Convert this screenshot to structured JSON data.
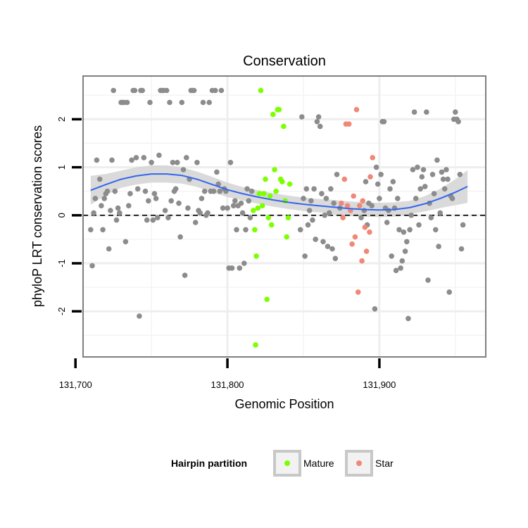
{
  "chart_data": {
    "type": "scatter",
    "title": "Conservation",
    "xlabel": "Genomic Position",
    "ylabel": "phyloP LRT conservation scores",
    "xlim": [
      131705,
      131970
    ],
    "ylim": [
      -2.95,
      2.9
    ],
    "x_ticks": [
      131700,
      131800,
      131900
    ],
    "x_tick_labels": [
      "131,700",
      "131,800",
      "131,900"
    ],
    "y_ticks": [
      -2,
      -1,
      0,
      1,
      2
    ],
    "y_tick_labels": [
      "-2",
      "-1",
      "0",
      "1",
      "2"
    ],
    "grid": true,
    "reference_line": {
      "y": 0,
      "style": "dashed"
    },
    "legend": {
      "title": "Hairpin partition",
      "placement": "bottom",
      "entries": [
        {
          "label": "Mature",
          "color": "#7cff00"
        },
        {
          "label": "Star",
          "color": "#f08878"
        }
      ]
    },
    "colors": {
      "other": "#8c8c8c",
      "Mature": "#7cff00",
      "Star": "#f08878",
      "smooth_line": "#3366ee",
      "ribbon": "#d3d3d3"
    },
    "smooth": {
      "x": [
        131710,
        131720,
        131730,
        131740,
        131750,
        131760,
        131770,
        131780,
        131790,
        131800,
        131810,
        131820,
        131830,
        131840,
        131850,
        131860,
        131870,
        131880,
        131890,
        131900,
        131910,
        131920,
        131930,
        131940,
        131950,
        131958
      ],
      "y": [
        0.52,
        0.64,
        0.75,
        0.82,
        0.86,
        0.86,
        0.83,
        0.75,
        0.64,
        0.53,
        0.45,
        0.38,
        0.32,
        0.27,
        0.23,
        0.2,
        0.17,
        0.14,
        0.12,
        0.11,
        0.12,
        0.16,
        0.24,
        0.35,
        0.48,
        0.6
      ],
      "upper": [
        0.82,
        0.86,
        0.93,
        1.0,
        1.04,
        1.04,
        1.0,
        0.91,
        0.8,
        0.68,
        0.59,
        0.52,
        0.46,
        0.41,
        0.37,
        0.34,
        0.32,
        0.29,
        0.27,
        0.26,
        0.27,
        0.3,
        0.4,
        0.55,
        0.75,
        0.94
      ],
      "lower": [
        0.22,
        0.42,
        0.57,
        0.64,
        0.68,
        0.68,
        0.66,
        0.59,
        0.48,
        0.38,
        0.31,
        0.24,
        0.18,
        0.13,
        0.09,
        0.06,
        0.02,
        -0.01,
        -0.03,
        -0.04,
        -0.03,
        0.02,
        0.08,
        0.15,
        0.21,
        0.26
      ]
    },
    "series": [
      {
        "group": "other",
        "points": [
          [
            131710,
            -0.3
          ],
          [
            131711,
            -1.05
          ],
          [
            131712,
            0.05
          ],
          [
            131713,
            0.35
          ],
          [
            131714,
            1.15
          ],
          [
            131716,
            0.75
          ],
          [
            131717,
            0.2
          ],
          [
            131718,
            -0.3
          ],
          [
            131719,
            0.35
          ],
          [
            131720,
            0.45
          ],
          [
            131721,
            0.5
          ],
          [
            131722,
            -0.7
          ],
          [
            131723,
            0.1
          ],
          [
            131724,
            1.15
          ],
          [
            131725,
            2.6
          ],
          [
            131726,
            0.5
          ],
          [
            131727,
            -0.1
          ],
          [
            131728,
            0.15
          ],
          [
            131729,
            0.05
          ],
          [
            131730,
            2.35
          ],
          [
            131731,
            2.35
          ],
          [
            131732,
            2.35
          ],
          [
            131733,
            -0.55
          ],
          [
            131734,
            2.35
          ],
          [
            131735,
            0.2
          ],
          [
            131736,
            0.45
          ],
          [
            131737,
            1.15
          ],
          [
            131738,
            2.6
          ],
          [
            131739,
            2.6
          ],
          [
            131740,
            1.2
          ],
          [
            131741,
            0.55
          ],
          [
            131742,
            -2.1
          ],
          [
            131743,
            2.6
          ],
          [
            131744,
            2.6
          ],
          [
            131745,
            1.2
          ],
          [
            131746,
            0.5
          ],
          [
            131747,
            -0.1
          ],
          [
            131748,
            0.3
          ],
          [
            131749,
            2.35
          ],
          [
            131750,
            1.1
          ],
          [
            131751,
            -0.1
          ],
          [
            131752,
            0.45
          ],
          [
            131753,
            0.35
          ],
          [
            131754,
            -0.05
          ],
          [
            131755,
            1.25
          ],
          [
            131756,
            2.6
          ],
          [
            131757,
            2.6
          ],
          [
            131758,
            2.6
          ],
          [
            131759,
            0.1
          ],
          [
            131760,
            2.6
          ],
          [
            131761,
            -0.05
          ],
          [
            131762,
            2.35
          ],
          [
            131763,
            0.3
          ],
          [
            131764,
            1.1
          ],
          [
            131765,
            0.5
          ],
          [
            131766,
            0.55
          ],
          [
            131767,
            1.1
          ],
          [
            131768,
            0.25
          ],
          [
            131769,
            -0.45
          ],
          [
            131770,
            2.35
          ],
          [
            131771,
            0.95
          ],
          [
            131772,
            -1.25
          ],
          [
            131773,
            1.2
          ],
          [
            131774,
            0.15
          ],
          [
            131775,
            0.75
          ],
          [
            131776,
            2.6
          ],
          [
            131777,
            2.6
          ],
          [
            131778,
            2.6
          ],
          [
            131779,
            -0.15
          ],
          [
            131780,
            1.1
          ],
          [
            131781,
            0.1
          ],
          [
            131782,
            0.05
          ],
          [
            131783,
            0.35
          ],
          [
            131784,
            2.35
          ],
          [
            131785,
            0.5
          ],
          [
            131786,
            0.0
          ],
          [
            131787,
            0.05
          ],
          [
            131788,
            2.35
          ],
          [
            131789,
            0.5
          ],
          [
            131790,
            2.6
          ],
          [
            131791,
            0.5
          ],
          [
            131792,
            2.6
          ],
          [
            131793,
            0.9
          ],
          [
            131794,
            0.65
          ],
          [
            131795,
            0.5
          ],
          [
            131796,
            2.6
          ],
          [
            131797,
            0.15
          ],
          [
            131798,
            0.55
          ],
          [
            131799,
            0.5
          ],
          [
            131800,
            0.15
          ],
          [
            131801,
            -1.1
          ],
          [
            131802,
            1.1
          ],
          [
            131803,
            -1.1
          ],
          [
            131804,
            0.2
          ],
          [
            131805,
            0.3
          ],
          [
            131806,
            -0.3
          ],
          [
            131807,
            0.2
          ],
          [
            131808,
            -1.1
          ],
          [
            131809,
            0.25
          ],
          [
            131810,
            0.05
          ],
          [
            131811,
            -1.0
          ],
          [
            131812,
            -0.3
          ],
          [
            131813,
            0.55
          ],
          [
            131814,
            0.3
          ],
          [
            131815,
            -0.05
          ],
          [
            131816,
            0.5
          ],
          [
            131848,
            -0.3
          ],
          [
            131849,
            2.05
          ],
          [
            131850,
            0.35
          ],
          [
            131851,
            -0.85
          ],
          [
            131852,
            0.55
          ],
          [
            131853,
            -0.2
          ],
          [
            131854,
            0.1
          ],
          [
            131855,
            0.3
          ],
          [
            131856,
            -0.1
          ],
          [
            131857,
            0.55
          ],
          [
            131858,
            -0.5
          ],
          [
            131859,
            1.95
          ],
          [
            131860,
            2.05
          ],
          [
            131861,
            1.85
          ],
          [
            131862,
            0.45
          ],
          [
            131863,
            -0.55
          ],
          [
            131864,
            0.0
          ],
          [
            131865,
            0.35
          ],
          [
            131866,
            -0.65
          ],
          [
            131867,
            0.05
          ],
          [
            131868,
            0.55
          ],
          [
            131869,
            -0.7
          ],
          [
            131870,
            0.25
          ],
          [
            131871,
            -0.9
          ],
          [
            131872,
            0.85
          ],
          [
            131874,
            0.15
          ],
          [
            131888,
            -0.05
          ],
          [
            131890,
            0.1
          ],
          [
            131891,
            0.7
          ],
          [
            131892,
            -0.2
          ],
          [
            131893,
            0.25
          ],
          [
            131895,
            0.2
          ],
          [
            131897,
            -1.95
          ],
          [
            131898,
            1.0
          ],
          [
            131899,
            0.65
          ],
          [
            131900,
            0.35
          ],
          [
            131901,
            0.85
          ],
          [
            131902,
            1.95
          ],
          [
            131903,
            1.95
          ],
          [
            131904,
            0.15
          ],
          [
            131905,
            -0.15
          ],
          [
            131906,
            0.1
          ],
          [
            131907,
            0.55
          ],
          [
            131908,
            -0.85
          ],
          [
            131909,
            0.7
          ],
          [
            131910,
            0.15
          ],
          [
            131911,
            -1.15
          ],
          [
            131912,
            0.35
          ],
          [
            131913,
            -0.3
          ],
          [
            131914,
            -1.1
          ],
          [
            131915,
            -0.95
          ],
          [
            131916,
            -0.35
          ],
          [
            131917,
            -0.75
          ],
          [
            131918,
            -0.55
          ],
          [
            131919,
            -2.15
          ],
          [
            131920,
            -0.3
          ],
          [
            131921,
            0.0
          ],
          [
            131922,
            0.95
          ],
          [
            131923,
            2.15
          ],
          [
            131924,
            0.35
          ],
          [
            131925,
            1.0
          ],
          [
            131926,
            -0.2
          ],
          [
            131927,
            0.55
          ],
          [
            131928,
            0.8
          ],
          [
            131929,
            0.95
          ],
          [
            131930,
            0.6
          ],
          [
            131931,
            2.15
          ],
          [
            131932,
            -1.35
          ],
          [
            131933,
            0.25
          ],
          [
            131934,
            -0.05
          ],
          [
            131935,
            0.85
          ],
          [
            131936,
            0.45
          ],
          [
            131937,
            -0.3
          ],
          [
            131938,
            1.15
          ],
          [
            131939,
            -0.65
          ],
          [
            131940,
            0.05
          ],
          [
            131941,
            0.9
          ],
          [
            131942,
            0.75
          ],
          [
            131943,
            0.55
          ],
          [
            131944,
            0.95
          ],
          [
            131945,
            0.75
          ],
          [
            131946,
            -1.6
          ],
          [
            131947,
            0.4
          ],
          [
            131948,
            0.35
          ],
          [
            131949,
            2.0
          ],
          [
            131950,
            2.15
          ],
          [
            131951,
            2.0
          ],
          [
            131952,
            1.95
          ],
          [
            131953,
            0.85
          ],
          [
            131954,
            -0.7
          ],
          [
            131955,
            -0.2
          ]
        ]
      },
      {
        "group": "Mature",
        "name": "Mature",
        "points": [
          [
            131817,
            0.1
          ],
          [
            131818,
            -0.3
          ],
          [
            131818.5,
            -2.7
          ],
          [
            131819,
            -0.85
          ],
          [
            131820,
            0.15
          ],
          [
            131821,
            0.45
          ],
          [
            131822,
            2.6
          ],
          [
            131823,
            0.2
          ],
          [
            131824,
            0.45
          ],
          [
            131825,
            0.75
          ],
          [
            131826,
            -1.75
          ],
          [
            131827,
            -0.05
          ],
          [
            131828,
            0.4
          ],
          [
            131829,
            -0.2
          ],
          [
            131830,
            2.1
          ],
          [
            131831,
            0.95
          ],
          [
            131832,
            0.5
          ],
          [
            131833,
            2.2
          ],
          [
            131834,
            2.2
          ],
          [
            131835,
            0.75
          ],
          [
            131836,
            0.7
          ],
          [
            131837,
            1.85
          ],
          [
            131838,
            0.3
          ],
          [
            131839,
            -0.45
          ],
          [
            131840,
            -0.05
          ],
          [
            131841,
            0.65
          ]
        ]
      },
      {
        "group": "Star",
        "name": "Star",
        "points": [
          [
            131875,
            0.25
          ],
          [
            131876,
            -0.05
          ],
          [
            131877,
            0.75
          ],
          [
            131878,
            1.9
          ],
          [
            131879,
            0.2
          ],
          [
            131880,
            1.9
          ],
          [
            131881,
            0.1
          ],
          [
            131882,
            -0.6
          ],
          [
            131883,
            0.4
          ],
          [
            131884,
            -0.45
          ],
          [
            131885,
            2.2
          ],
          [
            131886,
            -1.6
          ],
          [
            131887,
            0.2
          ],
          [
            131888.5,
            -0.95
          ],
          [
            131889,
            0.3
          ],
          [
            131890.5,
            -0.25
          ],
          [
            131891.5,
            -0.75
          ],
          [
            131893.5,
            -0.35
          ],
          [
            131894,
            0.8
          ],
          [
            131895.5,
            1.2
          ]
        ]
      }
    ]
  }
}
